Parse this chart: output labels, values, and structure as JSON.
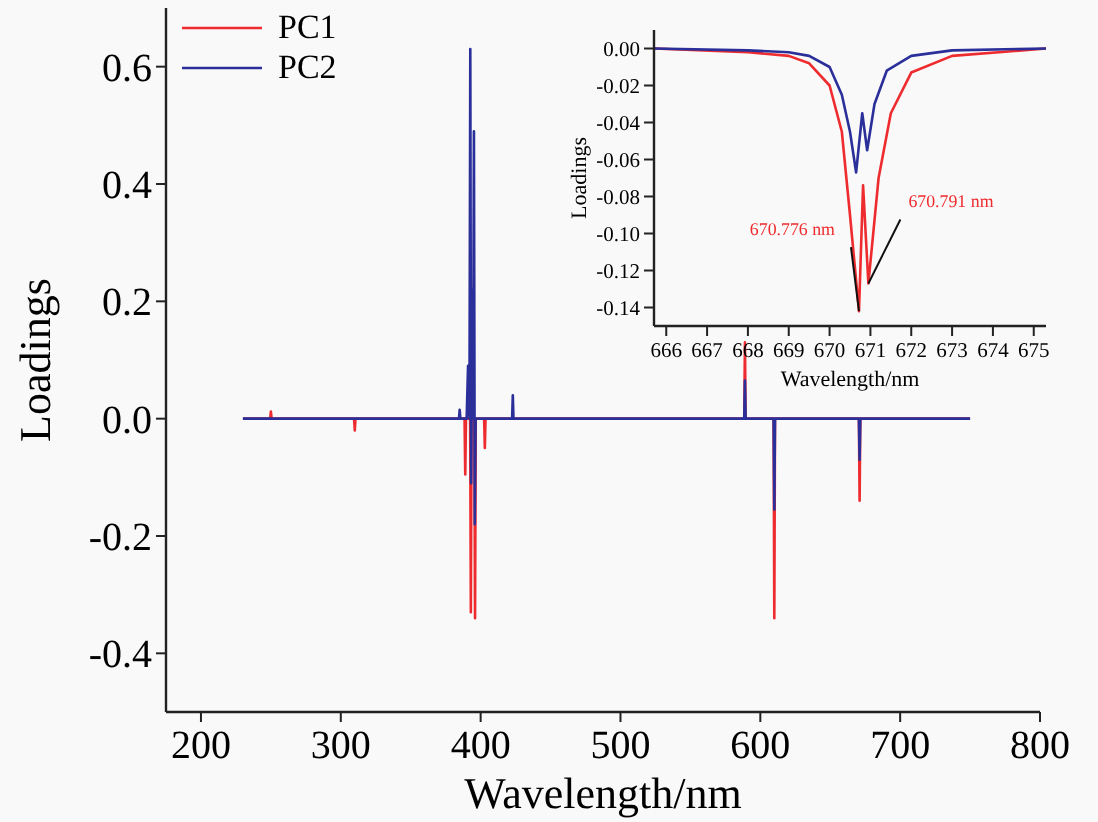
{
  "chart_data": [
    {
      "type": "line",
      "xlabel": "Wavelength/nm",
      "ylabel": "Loadings",
      "xlim": [
        175,
        800
      ],
      "ylim": [
        -0.5,
        0.7
      ],
      "xticks": [
        200,
        300,
        400,
        500,
        600,
        700,
        800
      ],
      "yticks": [
        -0.4,
        -0.2,
        {
          "value": 0,
          "label": "0.0"
        },
        0.2,
        0.4,
        0.6
      ],
      "legend": "top left",
      "grid": false,
      "series": [
        {
          "name": "PC1",
          "color": "#ee2b2f",
          "x": [
            230,
            249.5,
            250,
            250.5,
            309.5,
            310,
            310.5,
            388.5,
            389,
            389.5,
            392.5,
            393,
            393.5,
            395.5,
            396,
            396.5,
            402.5,
            403,
            403.5,
            588.5,
            589,
            589.5,
            609.5,
            610,
            610.5,
            670.5,
            671,
            671.5,
            750
          ],
          "values": [
            0,
            0,
            0.012,
            0,
            0,
            -0.02,
            0,
            0,
            -0.095,
            0,
            0,
            -0.33,
            0,
            0,
            -0.34,
            0,
            0,
            -0.05,
            0,
            0,
            0.13,
            0,
            0,
            -0.34,
            0,
            0,
            -0.14,
            0,
            0
          ]
        },
        {
          "name": "PC2",
          "color": "#2b2f9a",
          "x": [
            230,
            384.5,
            385,
            385.5,
            390,
            391,
            392,
            392.6,
            393.2,
            394,
            394.6,
            395.2,
            395.8,
            396.4,
            422.5,
            423,
            423.5,
            588.5,
            589,
            589.5,
            609.5,
            610,
            610.5,
            670.5,
            671,
            671.5,
            750
          ],
          "values": [
            0,
            0,
            0.015,
            0,
            0,
            0.09,
            0,
            0.63,
            -0.11,
            0.22,
            0,
            0.49,
            -0.18,
            0,
            0,
            0.04,
            0,
            0,
            0.065,
            0,
            0,
            -0.155,
            0,
            0,
            -0.07,
            0,
            0
          ]
        }
      ]
    },
    {
      "type": "line",
      "xlabel": "Wavelength/nm",
      "ylabel": "Loadings",
      "xlim": [
        665.7,
        675.3
      ],
      "ylim": [
        -0.15,
        0.01
      ],
      "xticks": [
        666,
        667,
        668,
        669,
        670,
        671,
        672,
        673,
        674,
        675
      ],
      "yticks": [
        {
          "value": -0.14,
          "label": "-0.14"
        },
        {
          "value": -0.12,
          "label": "-0.12"
        },
        {
          "value": -0.1,
          "label": "-0.10"
        },
        {
          "value": -0.08,
          "label": "-0.08"
        },
        {
          "value": -0.06,
          "label": "-0.06"
        },
        {
          "value": -0.04,
          "label": "-0.04"
        },
        {
          "value": -0.02,
          "label": "-0.02"
        },
        {
          "value": 0,
          "label": "0.00"
        }
      ],
      "grid": false,
      "annotations": [
        {
          "text": "670.776 nm",
          "x": 670.72,
          "y": -0.142
        },
        {
          "text": "670.791 nm",
          "x": 670.95,
          "y": -0.127
        }
      ],
      "series": [
        {
          "color": "#ee2b2f",
          "x": [
            665.7,
            668,
            669,
            669.5,
            670,
            670.3,
            670.5,
            670.72,
            670.82,
            670.95,
            671.2,
            671.5,
            672,
            673,
            675.3
          ],
          "values": [
            0,
            -0.002,
            -0.004,
            -0.008,
            -0.02,
            -0.045,
            -0.09,
            -0.142,
            -0.074,
            -0.127,
            -0.07,
            -0.035,
            -0.013,
            -0.004,
            0
          ]
        },
        {
          "color": "#2b2f9a",
          "x": [
            665.7,
            668,
            669,
            669.5,
            670,
            670.3,
            670.5,
            670.65,
            670.8,
            670.92,
            671.1,
            671.4,
            672,
            673,
            675.3
          ],
          "values": [
            0,
            -0.001,
            -0.002,
            -0.004,
            -0.01,
            -0.025,
            -0.045,
            -0.067,
            -0.035,
            -0.055,
            -0.03,
            -0.012,
            -0.004,
            -0.001,
            0
          ]
        }
      ]
    }
  ]
}
